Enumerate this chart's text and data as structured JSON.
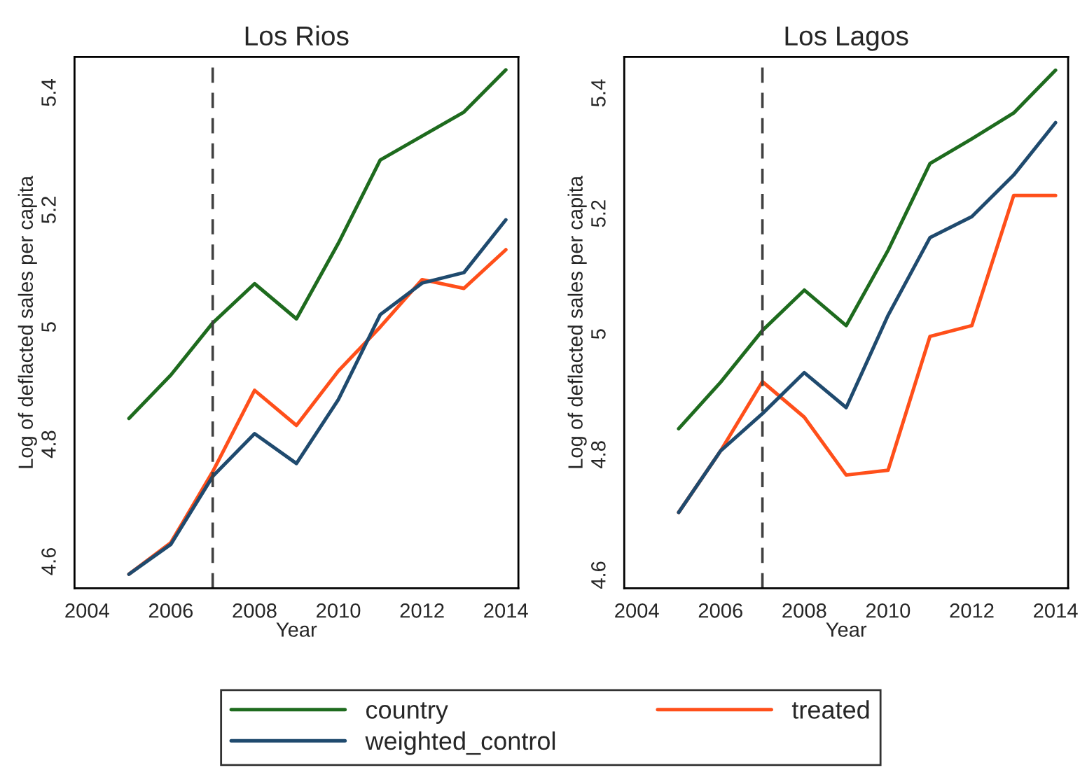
{
  "chart_data": [
    {
      "type": "line",
      "title": "Los Rios",
      "xlabel": "Year",
      "ylabel": "Log of deflacted sales per capita",
      "x": [
        2005,
        2006,
        2007,
        2008,
        2009,
        2010,
        2011,
        2012,
        2013,
        2014
      ],
      "series": [
        {
          "name": "country",
          "color": "#1e6b1e",
          "values": [
            4.844,
            4.918,
            5.007,
            5.074,
            5.014,
            5.143,
            5.285,
            5.326,
            5.367,
            5.439
          ]
        },
        {
          "name": "treated",
          "color": "#ff4f1a",
          "values": [
            4.578,
            4.632,
            4.753,
            4.892,
            4.832,
            4.925,
            5.0,
            5.081,
            5.066,
            5.132
          ]
        },
        {
          "name": "weighted_control",
          "color": "#1f4a6e",
          "values": [
            4.578,
            4.629,
            4.745,
            4.818,
            4.767,
            4.876,
            5.021,
            5.075,
            5.093,
            5.183
          ]
        }
      ],
      "xlim": [
        2003.7,
        2014.3
      ],
      "ylim": [
        4.554,
        5.461
      ],
      "xticks": [
        2004,
        2006,
        2008,
        2010,
        2012,
        2014
      ],
      "yticks": [
        4.6,
        4.8,
        5,
        5.2,
        5.4
      ],
      "ref_lines": [
        {
          "axis": "x",
          "value": 2007,
          "color": "#404040",
          "line_style": "dashed"
        }
      ],
      "grid": false,
      "legend": "bottom",
      "line_style": "solid",
      "marker": "none"
    },
    {
      "type": "line",
      "title": "Los Lagos",
      "xlabel": "Year",
      "ylabel": "Log of deflacted sales per capita",
      "x": [
        2005,
        2006,
        2007,
        2008,
        2009,
        2010,
        2011,
        2012,
        2013,
        2014
      ],
      "series": [
        {
          "name": "country",
          "color": "#1e6b1e",
          "values": [
            4.843,
            4.92,
            5.006,
            5.073,
            5.014,
            5.139,
            5.283,
            5.324,
            5.367,
            5.438
          ]
        },
        {
          "name": "treated",
          "color": "#ff4f1a",
          "values": [
            4.704,
            4.806,
            4.921,
            4.862,
            4.766,
            4.774,
            4.996,
            5.014,
            5.23,
            5.23
          ]
        },
        {
          "name": "weighted_control",
          "color": "#1f4a6e",
          "values": [
            4.704,
            4.806,
            4.868,
            4.936,
            4.878,
            5.031,
            5.16,
            5.195,
            5.264,
            5.351
          ]
        }
      ],
      "xlim": [
        2003.7,
        2014.3
      ],
      "ylim": [
        4.578,
        5.46
      ],
      "xticks": [
        2004,
        2006,
        2008,
        2010,
        2012,
        2014
      ],
      "yticks": [
        4.6,
        4.8,
        5,
        5.2,
        5.4
      ],
      "ref_lines": [
        {
          "axis": "x",
          "value": 2007,
          "color": "#404040",
          "line_style": "dashed"
        }
      ],
      "grid": false,
      "legend": "bottom",
      "line_style": "solid",
      "marker": "none"
    }
  ]
}
